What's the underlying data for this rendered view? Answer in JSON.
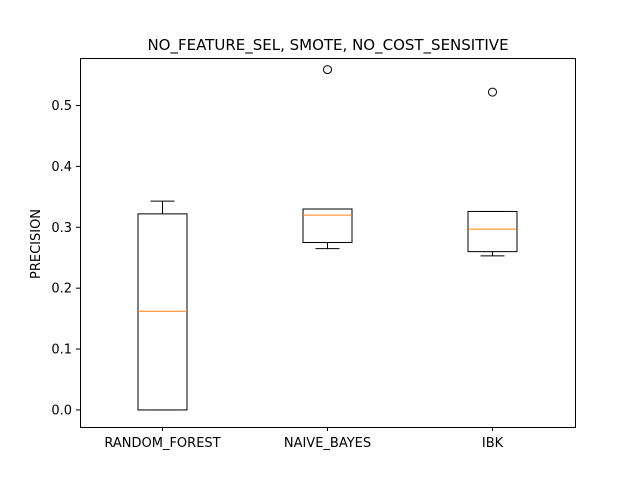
{
  "chart_data": {
    "type": "boxplot",
    "title": "NO_FEATURE_SEL, SMOTE, NO_COST_SENSITIVE",
    "xlabel": "",
    "ylabel": "PRECISION",
    "ylim": [
      -0.028,
      0.578
    ],
    "yticks": [
      0.0,
      0.1,
      0.2,
      0.3,
      0.4,
      0.5
    ],
    "ytick_labels": [
      "0.0",
      "0.1",
      "0.2",
      "0.3",
      "0.4",
      "0.5"
    ],
    "categories": [
      "RANDOM_FOREST",
      "NAIVE_BAYES",
      "IBK"
    ],
    "boxes": [
      {
        "category": "RANDOM_FOREST",
        "whisker_low": 0.0,
        "q1": 0.0,
        "median": 0.162,
        "q3": 0.322,
        "whisker_high": 0.343,
        "fliers": []
      },
      {
        "category": "NAIVE_BAYES",
        "whisker_low": 0.265,
        "q1": 0.275,
        "median": 0.32,
        "q3": 0.33,
        "whisker_high": 0.33,
        "fliers": [
          0.559
        ]
      },
      {
        "category": "IBK",
        "whisker_low": 0.253,
        "q1": 0.26,
        "median": 0.297,
        "q3": 0.326,
        "whisker_high": 0.326,
        "fliers": [
          0.522
        ]
      }
    ],
    "grid": false,
    "colors": {
      "box": "#000000",
      "median": "#ff7f0e",
      "flier": "#000000"
    }
  }
}
